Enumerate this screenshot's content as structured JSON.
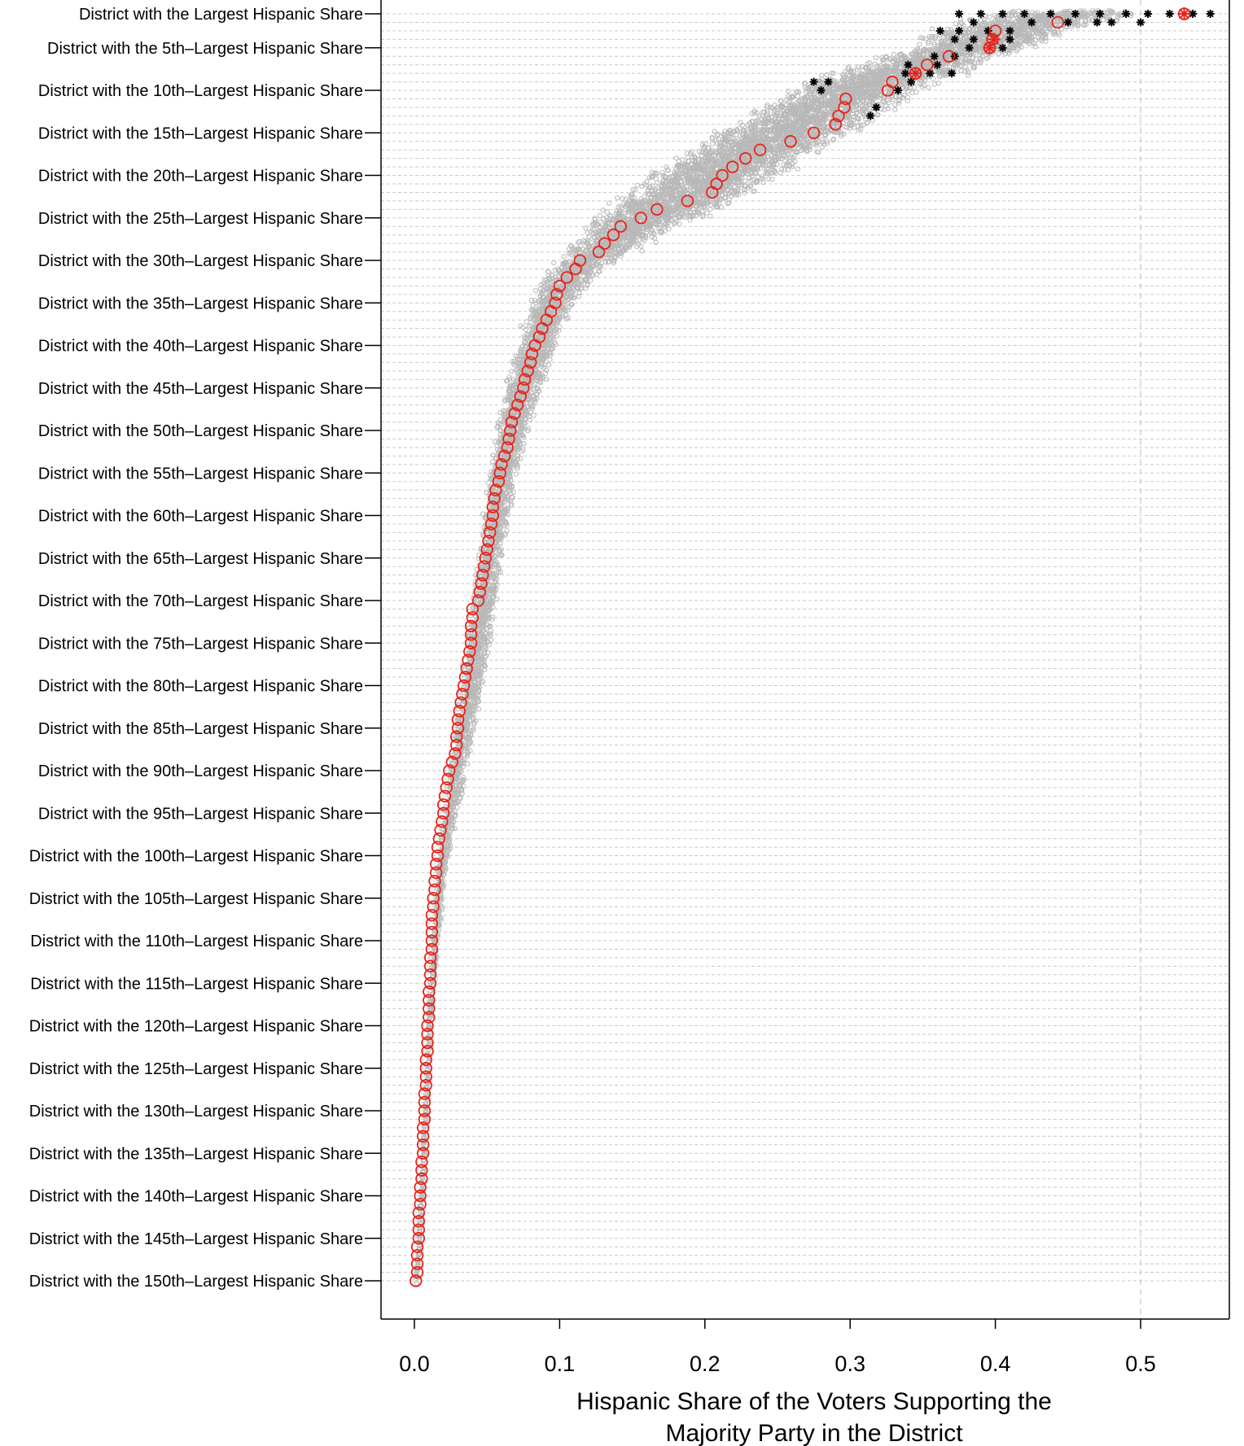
{
  "chart_data": {
    "type": "scatter",
    "title": "",
    "xlabel_lines": [
      "Hispanic Share of the Voters Supporting the",
      "Majority Party in the District"
    ],
    "xlim": [
      -0.02,
      0.565
    ],
    "x_ticks": [
      "0.0",
      "0.1",
      "0.2",
      "0.3",
      "0.4",
      "0.5"
    ],
    "x_tick_values": [
      0.0,
      0.1,
      0.2,
      0.3,
      0.4,
      0.5
    ],
    "y_ticks": [
      "District with the Largest Hispanic Share",
      "District with the 5th–Largest Hispanic Share",
      "District with the 10th–Largest Hispanic Share",
      "District with the 15th–Largest Hispanic Share",
      "District with the 20th–Largest Hispanic Share",
      "District with the 25th–Largest Hispanic Share",
      "District with the 30th–Largest Hispanic Share",
      "District with the 35th–Largest Hispanic Share",
      "District with the 40th–Largest Hispanic Share",
      "District with the 45th–Largest Hispanic Share",
      "District with the 50th–Largest Hispanic Share",
      "District with the 55th–Largest Hispanic Share",
      "District with the 60th–Largest Hispanic Share",
      "District with the 65th–Largest Hispanic Share",
      "District with the 70th–Largest Hispanic Share",
      "District with the 75th–Largest Hispanic Share",
      "District with the 80th–Largest Hispanic Share",
      "District with the 85th–Largest Hispanic Share",
      "District with the 90th–Largest Hispanic Share",
      "District with the 95th–Largest Hispanic Share",
      "District with the 100th–Largest Hispanic Share",
      "District with the 105th–Largest Hispanic Share",
      "District with the 110th–Largest Hispanic Share",
      "District with the 115th–Largest Hispanic Share",
      "District with the 120th–Largest Hispanic Share",
      "District with the 125th–Largest Hispanic Share",
      "District with the 130th–Largest Hispanic Share",
      "District with the 135th–Largest Hispanic Share",
      "District with the 140th–Largest Hispanic Share",
      "District with the 145th–Largest Hispanic Share",
      "District with the 150th–Largest Hispanic Share"
    ],
    "y_tick_ranks": [
      1,
      5,
      10,
      15,
      20,
      25,
      30,
      35,
      40,
      45,
      50,
      55,
      60,
      65,
      70,
      75,
      80,
      85,
      90,
      95,
      100,
      105,
      110,
      115,
      120,
      125,
      130,
      135,
      140,
      145,
      150
    ],
    "rank_range": [
      1,
      150
    ],
    "reference_line_x": 0.5,
    "grid": "dashed horizontal line per district",
    "series": [
      {
        "marker": "red open circle",
        "color": "#e8231c",
        "points_rank_x": [
          [
            1,
            0.53
          ],
          [
            2,
            0.443
          ],
          [
            3,
            0.4
          ],
          [
            4,
            0.398
          ],
          [
            5,
            0.396
          ],
          [
            6,
            0.368
          ],
          [
            7,
            0.353
          ],
          [
            8,
            0.345
          ],
          [
            9,
            0.329
          ],
          [
            10,
            0.326
          ],
          [
            11,
            0.297
          ],
          [
            12,
            0.296
          ],
          [
            13,
            0.292
          ],
          [
            14,
            0.29
          ],
          [
            15,
            0.275
          ],
          [
            16,
            0.259
          ],
          [
            17,
            0.238
          ],
          [
            18,
            0.228
          ],
          [
            19,
            0.219
          ],
          [
            20,
            0.212
          ],
          [
            21,
            0.208
          ],
          [
            22,
            0.205
          ],
          [
            23,
            0.188
          ],
          [
            24,
            0.167
          ],
          [
            25,
            0.156
          ],
          [
            26,
            0.142
          ],
          [
            27,
            0.137
          ],
          [
            28,
            0.131
          ],
          [
            29,
            0.127
          ],
          [
            30,
            0.114
          ],
          [
            31,
            0.111
          ],
          [
            32,
            0.105
          ],
          [
            33,
            0.1
          ],
          [
            34,
            0.098
          ],
          [
            35,
            0.097
          ],
          [
            36,
            0.094
          ],
          [
            37,
            0.091
          ],
          [
            38,
            0.088
          ],
          [
            39,
            0.086
          ],
          [
            40,
            0.083
          ],
          [
            41,
            0.081
          ],
          [
            42,
            0.08
          ],
          [
            43,
            0.078
          ],
          [
            44,
            0.076
          ],
          [
            45,
            0.075
          ],
          [
            46,
            0.073
          ],
          [
            47,
            0.071
          ],
          [
            48,
            0.069
          ],
          [
            49,
            0.067
          ],
          [
            50,
            0.066
          ],
          [
            51,
            0.065
          ],
          [
            52,
            0.064
          ],
          [
            53,
            0.062
          ],
          [
            54,
            0.06
          ],
          [
            55,
            0.059
          ],
          [
            56,
            0.058
          ],
          [
            57,
            0.056
          ],
          [
            58,
            0.055
          ],
          [
            59,
            0.054
          ],
          [
            60,
            0.054
          ],
          [
            61,
            0.053
          ],
          [
            62,
            0.052
          ],
          [
            63,
            0.051
          ],
          [
            64,
            0.05
          ],
          [
            65,
            0.049
          ],
          [
            66,
            0.048
          ],
          [
            67,
            0.047
          ],
          [
            68,
            0.046
          ],
          [
            69,
            0.045
          ],
          [
            70,
            0.044
          ],
          [
            71,
            0.04
          ],
          [
            72,
            0.04
          ],
          [
            73,
            0.039
          ],
          [
            74,
            0.039
          ],
          [
            75,
            0.039
          ],
          [
            76,
            0.038
          ],
          [
            77,
            0.037
          ],
          [
            78,
            0.036
          ],
          [
            79,
            0.035
          ],
          [
            80,
            0.034
          ],
          [
            81,
            0.033
          ],
          [
            82,
            0.032
          ],
          [
            83,
            0.031
          ],
          [
            84,
            0.03
          ],
          [
            85,
            0.03
          ],
          [
            86,
            0.029
          ],
          [
            87,
            0.029
          ],
          [
            88,
            0.028
          ],
          [
            89,
            0.026
          ],
          [
            90,
            0.024
          ],
          [
            91,
            0.023
          ],
          [
            92,
            0.022
          ],
          [
            93,
            0.021
          ],
          [
            94,
            0.02
          ],
          [
            95,
            0.02
          ],
          [
            96,
            0.019
          ],
          [
            97,
            0.018
          ],
          [
            98,
            0.017
          ],
          [
            99,
            0.016
          ],
          [
            100,
            0.016
          ],
          [
            101,
            0.015
          ],
          [
            102,
            0.015
          ],
          [
            103,
            0.014
          ],
          [
            104,
            0.014
          ],
          [
            105,
            0.013
          ],
          [
            106,
            0.013
          ],
          [
            107,
            0.012
          ],
          [
            108,
            0.012
          ],
          [
            109,
            0.012
          ],
          [
            110,
            0.012
          ],
          [
            111,
            0.012
          ],
          [
            112,
            0.011
          ],
          [
            113,
            0.011
          ],
          [
            114,
            0.011
          ],
          [
            115,
            0.011
          ],
          [
            116,
            0.01
          ],
          [
            117,
            0.01
          ],
          [
            118,
            0.01
          ],
          [
            119,
            0.01
          ],
          [
            120,
            0.009
          ],
          [
            121,
            0.009
          ],
          [
            122,
            0.009
          ],
          [
            123,
            0.009
          ],
          [
            124,
            0.008
          ],
          [
            125,
            0.008
          ],
          [
            126,
            0.008
          ],
          [
            127,
            0.008
          ],
          [
            128,
            0.007
          ],
          [
            129,
            0.007
          ],
          [
            130,
            0.007
          ],
          [
            131,
            0.007
          ],
          [
            132,
            0.006
          ],
          [
            133,
            0.006
          ],
          [
            134,
            0.006
          ],
          [
            135,
            0.006
          ],
          [
            136,
            0.005
          ],
          [
            137,
            0.005
          ],
          [
            138,
            0.005
          ],
          [
            139,
            0.004
          ],
          [
            140,
            0.004
          ],
          [
            141,
            0.004
          ],
          [
            142,
            0.003
          ],
          [
            143,
            0.003
          ],
          [
            144,
            0.003
          ],
          [
            145,
            0.003
          ],
          [
            146,
            0.002
          ],
          [
            147,
            0.002
          ],
          [
            148,
            0.002
          ],
          [
            149,
            0.002
          ],
          [
            150,
            0.001
          ]
        ]
      },
      {
        "marker": "red asterisk",
        "color": "#e8231c",
        "points_rank_x": [
          [
            1,
            0.53
          ],
          [
            4,
            0.399
          ],
          [
            5,
            0.396
          ],
          [
            8,
            0.345
          ]
        ]
      },
      {
        "marker": "black asterisk",
        "color": "#000000",
        "points_rank_x": [
          [
            1,
            0.548
          ],
          [
            1,
            0.536
          ],
          [
            1,
            0.52
          ],
          [
            1,
            0.505
          ],
          [
            1,
            0.49
          ],
          [
            1,
            0.472
          ],
          [
            1,
            0.455
          ],
          [
            1,
            0.438
          ],
          [
            1,
            0.42
          ],
          [
            1,
            0.405
          ],
          [
            1,
            0.39
          ],
          [
            1,
            0.375
          ],
          [
            2,
            0.5
          ],
          [
            2,
            0.48
          ],
          [
            2,
            0.47
          ],
          [
            2,
            0.45
          ],
          [
            2,
            0.425
          ],
          [
            2,
            0.385
          ],
          [
            3,
            0.41
          ],
          [
            3,
            0.395
          ],
          [
            3,
            0.375
          ],
          [
            3,
            0.362
          ],
          [
            4,
            0.41
          ],
          [
            4,
            0.385
          ],
          [
            4,
            0.372
          ],
          [
            5,
            0.405
          ],
          [
            5,
            0.382
          ],
          [
            6,
            0.372
          ],
          [
            6,
            0.358
          ],
          [
            7,
            0.36
          ],
          [
            7,
            0.34
          ],
          [
            8,
            0.355
          ],
          [
            8,
            0.338
          ],
          [
            8,
            0.37
          ],
          [
            9,
            0.342
          ],
          [
            9,
            0.285
          ],
          [
            9,
            0.275
          ],
          [
            10,
            0.333
          ],
          [
            10,
            0.28
          ],
          [
            12,
            0.318
          ],
          [
            13,
            0.314
          ]
        ]
      }
    ],
    "simulation_cloud": {
      "marker": "gray open circle",
      "color": "#b8b8b8",
      "description_free": true,
      "band_rank_x": [
        [
          1,
          0.4,
          0.5
        ],
        [
          2,
          0.38,
          0.47
        ],
        [
          3,
          0.36,
          0.45
        ],
        [
          4,
          0.35,
          0.44
        ],
        [
          5,
          0.34,
          0.42
        ],
        [
          6,
          0.32,
          0.4
        ],
        [
          7,
          0.31,
          0.39
        ],
        [
          8,
          0.29,
          0.38
        ],
        [
          9,
          0.27,
          0.36
        ],
        [
          10,
          0.26,
          0.35
        ],
        [
          12,
          0.24,
          0.33
        ],
        [
          14,
          0.22,
          0.31
        ],
        [
          16,
          0.2,
          0.29
        ],
        [
          18,
          0.18,
          0.27
        ],
        [
          20,
          0.16,
          0.25
        ],
        [
          22,
          0.15,
          0.23
        ],
        [
          24,
          0.13,
          0.21
        ],
        [
          26,
          0.12,
          0.18
        ],
        [
          28,
          0.11,
          0.16
        ],
        [
          30,
          0.1,
          0.14
        ],
        [
          32,
          0.09,
          0.125
        ],
        [
          34,
          0.083,
          0.115
        ],
        [
          36,
          0.078,
          0.108
        ],
        [
          38,
          0.074,
          0.102
        ],
        [
          40,
          0.071,
          0.097
        ],
        [
          44,
          0.064,
          0.09
        ],
        [
          48,
          0.058,
          0.082
        ],
        [
          52,
          0.054,
          0.076
        ],
        [
          56,
          0.05,
          0.07
        ],
        [
          60,
          0.047,
          0.066
        ],
        [
          65,
          0.044,
          0.061
        ],
        [
          70,
          0.04,
          0.057
        ],
        [
          75,
          0.036,
          0.052
        ],
        [
          80,
          0.032,
          0.047
        ],
        [
          85,
          0.028,
          0.042
        ],
        [
          90,
          0.024,
          0.036
        ],
        [
          95,
          0.02,
          0.03
        ],
        [
          100,
          0.016,
          0.024
        ],
        [
          110,
          0.012,
          0.017
        ],
        [
          120,
          0.009,
          0.012
        ],
        [
          130,
          0.007,
          0.009
        ],
        [
          140,
          0.004,
          0.006
        ],
        [
          150,
          0.001,
          0.003
        ]
      ]
    }
  }
}
